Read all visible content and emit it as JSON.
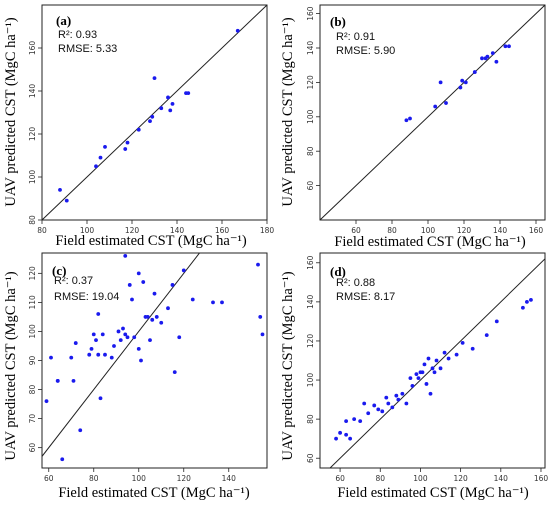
{
  "chart_data": [
    {
      "type": "scatter",
      "panel": "(a)",
      "xlabel": "Field estimated CST (MgC ha⁻¹)",
      "ylabel": "UAV predicted CST (MgC ha⁻¹)",
      "r2_label": "R²: 0.93",
      "rmse_label": "RMSE: 5.33",
      "xlim": [
        80,
        180
      ],
      "ylim": [
        80,
        180
      ],
      "xticks": [
        80,
        100,
        120,
        140,
        160,
        180
      ],
      "yticks": [
        80,
        100,
        120,
        140,
        160
      ],
      "identity_line": true,
      "point_color": "#1a1aee",
      "points": [
        [
          88,
          94
        ],
        [
          91,
          89
        ],
        [
          104,
          105
        ],
        [
          106,
          109
        ],
        [
          108,
          114
        ],
        [
          117,
          113
        ],
        [
          118,
          116
        ],
        [
          123,
          122
        ],
        [
          128,
          126
        ],
        [
          129,
          128
        ],
        [
          130,
          146
        ],
        [
          133,
          132
        ],
        [
          136,
          137
        ],
        [
          137,
          131
        ],
        [
          138,
          134
        ],
        [
          144,
          139
        ],
        [
          145,
          139
        ],
        [
          167,
          168
        ]
      ]
    },
    {
      "type": "scatter",
      "panel": "(b)",
      "xlabel": "Field estimated CST (MgC ha⁻¹)",
      "ylabel": "UAV predicted CST (MgC ha⁻¹)",
      "r2_label": "R²: 0.91",
      "rmse_label": "RMSE: 5.90",
      "xlim": [
        40,
        165
      ],
      "ylim": [
        40,
        165
      ],
      "xticks": [
        60,
        80,
        100,
        120,
        140,
        160
      ],
      "yticks": [
        60,
        80,
        100,
        120,
        140,
        160
      ],
      "identity_line": true,
      "point_color": "#1a1aee",
      "points": [
        [
          88,
          98
        ],
        [
          90,
          99
        ],
        [
          104,
          106
        ],
        [
          107,
          120
        ],
        [
          110,
          108
        ],
        [
          118,
          117
        ],
        [
          119,
          121
        ],
        [
          121,
          120
        ],
        [
          126,
          126
        ],
        [
          130,
          134
        ],
        [
          132,
          134
        ],
        [
          133,
          135
        ],
        [
          136,
          137
        ],
        [
          138,
          132
        ],
        [
          143,
          141
        ],
        [
          145,
          141
        ]
      ]
    },
    {
      "type": "scatter",
      "panel": "(c)",
      "xlabel": "Field estimated CST (MgC ha⁻¹)",
      "ylabel": "UAV predicted CST (MgC ha⁻¹)",
      "r2_label": "R²: 0.37",
      "rmse_label": "RMSE: 19.04",
      "xlim": [
        57,
        157
      ],
      "ylim": [
        53,
        127
      ],
      "xticks": [
        60,
        80,
        100,
        120,
        140
      ],
      "yticks": [
        60,
        70,
        80,
        90,
        100,
        110,
        120
      ],
      "identity_line": true,
      "point_color": "#1a1aee",
      "points": [
        [
          59,
          76
        ],
        [
          61,
          91
        ],
        [
          64,
          83
        ],
        [
          64,
          83
        ],
        [
          66,
          56
        ],
        [
          70,
          91
        ],
        [
          71,
          83
        ],
        [
          72,
          96
        ],
        [
          74,
          66
        ],
        [
          78,
          92
        ],
        [
          79,
          94
        ],
        [
          80,
          99
        ],
        [
          81,
          97
        ],
        [
          82,
          92
        ],
        [
          82,
          106
        ],
        [
          83,
          77
        ],
        [
          84,
          99
        ],
        [
          85,
          92
        ],
        [
          88,
          91
        ],
        [
          89,
          95
        ],
        [
          91,
          100
        ],
        [
          92,
          97
        ],
        [
          93,
          101
        ],
        [
          94,
          99
        ],
        [
          94,
          126
        ],
        [
          95,
          98
        ],
        [
          96,
          116
        ],
        [
          97,
          111
        ],
        [
          98,
          98
        ],
        [
          100,
          94
        ],
        [
          100,
          120
        ],
        [
          101,
          90
        ],
        [
          102,
          117
        ],
        [
          103,
          105
        ],
        [
          104,
          105
        ],
        [
          105,
          97
        ],
        [
          106,
          104
        ],
        [
          107,
          113
        ],
        [
          108,
          105
        ],
        [
          110,
          103
        ],
        [
          113,
          108
        ],
        [
          115,
          116
        ],
        [
          116,
          86
        ],
        [
          118,
          98
        ],
        [
          120,
          121
        ],
        [
          124,
          111
        ],
        [
          133,
          110
        ],
        [
          137,
          110
        ],
        [
          153,
          123
        ],
        [
          154,
          105
        ],
        [
          155,
          99
        ]
      ]
    },
    {
      "type": "scatter",
      "panel": "(d)",
      "xlabel": "Field estimated CST (MgC ha⁻¹)",
      "ylabel": "UAV predicted CST (MgC ha⁻¹)",
      "r2_label": "R²: 0.88",
      "rmse_label": "RMSE: 8.17",
      "xlim": [
        50,
        162
      ],
      "ylim": [
        55,
        165
      ],
      "xticks": [
        60,
        80,
        100,
        120,
        140,
        160
      ],
      "yticks": [
        60,
        80,
        100,
        120,
        140,
        160
      ],
      "identity_line": true,
      "point_color": "#1a1aee",
      "points": [
        [
          58,
          70
        ],
        [
          60,
          73
        ],
        [
          63,
          72
        ],
        [
          63,
          79
        ],
        [
          65,
          70
        ],
        [
          67,
          80
        ],
        [
          70,
          79
        ],
        [
          72,
          88
        ],
        [
          74,
          83
        ],
        [
          77,
          87
        ],
        [
          79,
          85
        ],
        [
          81,
          84
        ],
        [
          83,
          91
        ],
        [
          84,
          88
        ],
        [
          86,
          86
        ],
        [
          88,
          92
        ],
        [
          89,
          90
        ],
        [
          91,
          93
        ],
        [
          93,
          88
        ],
        [
          95,
          101
        ],
        [
          96,
          97
        ],
        [
          98,
          103
        ],
        [
          99,
          101
        ],
        [
          100,
          104
        ],
        [
          101,
          104
        ],
        [
          102,
          108
        ],
        [
          103,
          98
        ],
        [
          104,
          111
        ],
        [
          105,
          93
        ],
        [
          106,
          106
        ],
        [
          107,
          104
        ],
        [
          108,
          110
        ],
        [
          110,
          106
        ],
        [
          112,
          114
        ],
        [
          114,
          111
        ],
        [
          118,
          113
        ],
        [
          121,
          119
        ],
        [
          126,
          116
        ],
        [
          133,
          123
        ],
        [
          138,
          130
        ],
        [
          151,
          137
        ],
        [
          153,
          140
        ],
        [
          155,
          141
        ]
      ]
    }
  ]
}
